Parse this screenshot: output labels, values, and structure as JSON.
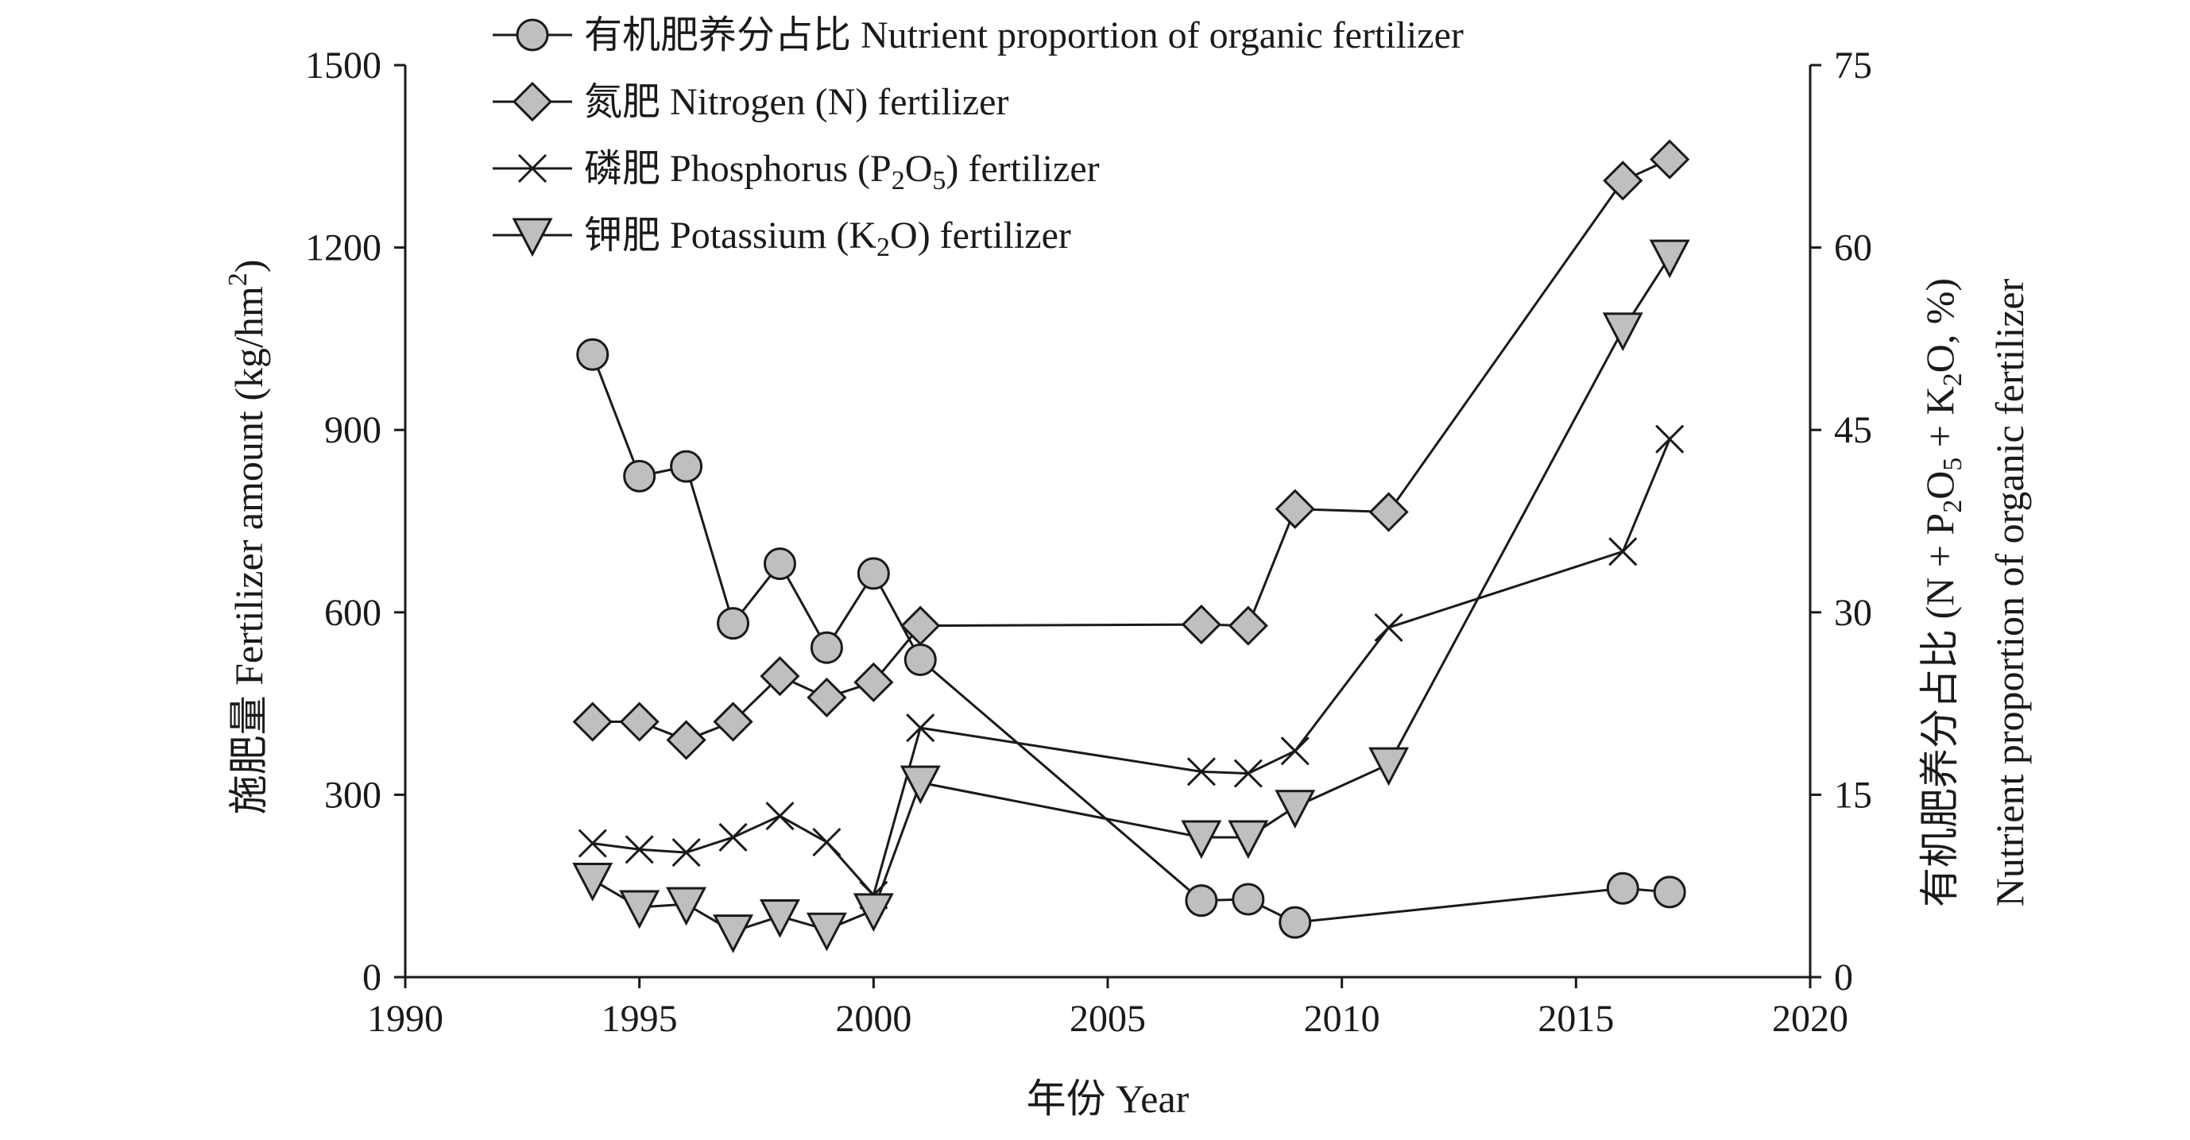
{
  "chart_data": {
    "type": "line",
    "xlabel": "年份 Year",
    "ylabel_left_parts": [
      "施肥量 Fertilizer amount (kg/hm",
      "2",
      ")"
    ],
    "ylabel_right_line1_parts": [
      "有机肥养分占比 (N + P",
      "2",
      "O",
      "5",
      " + K",
      "2",
      "O, %)"
    ],
    "ylabel_right_line2": "Nutrient proportion of organic fertilizer",
    "x_ticks": [
      "1990",
      "1995",
      "2000",
      "2005",
      "2010",
      "2015",
      "2020"
    ],
    "y_left_ticks": [
      "0",
      "300",
      "600",
      "900",
      "1200",
      "1500"
    ],
    "y_right_ticks": [
      "0",
      "15",
      "30",
      "45",
      "60",
      "75"
    ],
    "xlim": [
      1990,
      2020
    ],
    "ylim_left": [
      0,
      1500
    ],
    "ylim_right": [
      0,
      75
    ],
    "grid": false,
    "legend_position": "top-left",
    "series": [
      {
        "id": "organic",
        "name": "有机肥养分占比 Nutrient proportion of organic fertilizer",
        "axis": "right",
        "marker": "circle",
        "x": [
          1994,
          1995,
          1996,
          1997,
          1998,
          1999,
          2000,
          2001,
          2007,
          2008,
          2009,
          2016,
          2017
        ],
        "y": [
          51.2,
          41.2,
          42.0,
          29.1,
          34.0,
          27.1,
          33.2,
          26.1,
          6.3,
          6.4,
          4.5,
          7.3,
          7.0
        ]
      },
      {
        "id": "nitrogen",
        "name_parts": [
          "氮肥 Nitrogen (N) fertilizer"
        ],
        "axis": "left",
        "marker": "diamond",
        "x": [
          1994,
          1995,
          1996,
          1997,
          1998,
          1999,
          2000,
          2001,
          2007,
          2008,
          2009,
          2011,
          2016,
          2017
        ],
        "y": [
          420,
          420,
          390,
          420,
          495,
          460,
          485,
          578,
          580,
          578,
          770,
          765,
          1310,
          1345
        ]
      },
      {
        "id": "phosphorus",
        "name_parts": [
          "磷肥 Phosphorus (P",
          "2",
          "O",
          "5",
          ") fertilizer"
        ],
        "axis": "left",
        "marker": "cross",
        "x": [
          1994,
          1995,
          1996,
          1997,
          1998,
          1999,
          2000,
          2001,
          2007,
          2008,
          2009,
          2011,
          2016,
          2017
        ],
        "y": [
          220,
          210,
          205,
          230,
          265,
          222,
          135,
          410,
          338,
          335,
          372,
          575,
          700,
          885
        ]
      },
      {
        "id": "potassium",
        "name_parts": [
          "钾肥 Potassium (K",
          "2",
          "O) fertilizer"
        ],
        "axis": "left",
        "marker": "triangle-down",
        "x": [
          1994,
          1995,
          1996,
          1997,
          1998,
          1999,
          2000,
          2001,
          2007,
          2008,
          2009,
          2011,
          2016,
          2017
        ],
        "y": [
          160,
          115,
          120,
          75,
          100,
          78,
          110,
          320,
          230,
          230,
          280,
          350,
          1065,
          1185
        ]
      }
    ],
    "colors": {
      "line": "#1a1a1a",
      "marker_fill": "#bfbfbf",
      "axis": "#1a1a1a"
    }
  }
}
